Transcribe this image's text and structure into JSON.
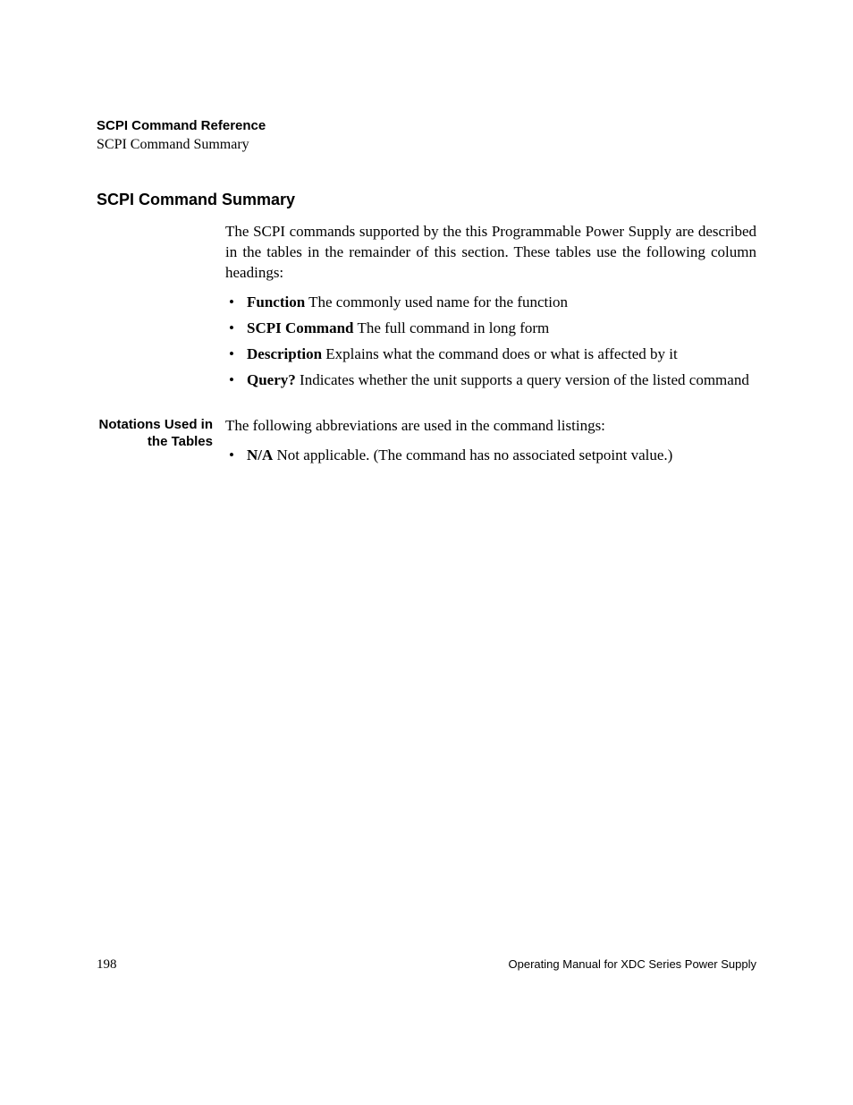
{
  "header": {
    "chapter": "SCPI Command Reference",
    "section": "SCPI Command Summary"
  },
  "heading": "SCPI Command Summary",
  "intro": "The SCPI commands supported by the this Programmable Power Supply are described in the tables in the remainder of this section. These tables use the following column headings:",
  "columns": [
    {
      "term": "Function",
      "desc": " The commonly used name for the function"
    },
    {
      "term": "SCPI Command",
      "desc": " The full command in long form"
    },
    {
      "term": "Description",
      "desc": " Explains what the command does or what is affected by it"
    },
    {
      "term": "Query?",
      "desc": " Indicates whether the unit supports a query version of the listed command"
    }
  ],
  "notations": {
    "label": "Notations Used in the Tables",
    "intro": "The following abbreviations are used in the command listings:",
    "items": [
      {
        "term": "N/A",
        "desc": " Not applicable. (The command has no associated setpoint value.)"
      }
    ]
  },
  "footer": {
    "page_number": "198",
    "manual_title": "Operating Manual for XDC Series Power Supply"
  }
}
